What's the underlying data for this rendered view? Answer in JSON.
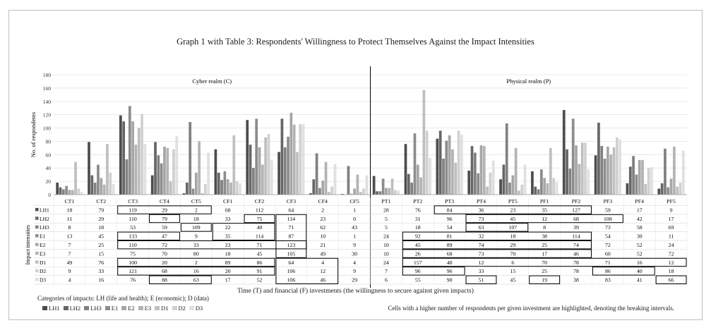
{
  "chart_data": {
    "type": "bar",
    "title": "Graph 1 with Table 3: Respondents' Willingness to Protect Themselves Against the Impact Intensities",
    "ylabel": "No. of respondents",
    "xlabel": "Time (T) and financial (F) investments (the willingness to secure against given impacts)",
    "table_axis_label": "Impact intensities",
    "ylim": [
      0,
      180
    ],
    "yticks": [
      0,
      20,
      40,
      60,
      80,
      100,
      120,
      140,
      160,
      180
    ],
    "regions": [
      "Cyber realm (C)",
      "Physical realm (P)"
    ],
    "categories": [
      "CT1",
      "CT2",
      "CT3",
      "CT4",
      "CT5",
      "CF1",
      "CF2",
      "CF3",
      "CF4",
      "CF5",
      "PT1",
      "PT2",
      "PT3",
      "PT4",
      "PT5",
      "PF1",
      "PF2",
      "PF3",
      "PF4",
      "PF5"
    ],
    "series": [
      {
        "name": "LH1",
        "color": "#4d4d4d",
        "values": [
          18,
          79,
          119,
          29,
          2,
          68,
          112,
          64,
          2,
          1,
          28,
          76,
          84,
          36,
          23,
          35,
          127,
          59,
          17,
          9
        ]
      },
      {
        "name": "LH2",
        "color": "#666666",
        "values": [
          11,
          29,
          110,
          79,
          18,
          33,
          75,
          114,
          23,
          0,
          5,
          31,
          96,
          73,
          45,
          12,
          68,
          108,
          42,
          17
        ]
      },
      {
        "name": "LH3",
        "color": "#808080",
        "values": [
          8,
          18,
          53,
          59,
          109,
          22,
          40,
          71,
          62,
          43,
          5,
          18,
          54,
          63,
          107,
          8,
          39,
          73,
          58,
          69
        ]
      },
      {
        "name": "E1",
        "color": "#8c8c8c",
        "values": [
          13,
          45,
          133,
          47,
          9,
          35,
          114,
          87,
          10,
          1,
          24,
          92,
          81,
          32,
          18,
          38,
          114,
          54,
          30,
          11
        ]
      },
      {
        "name": "E2",
        "color": "#a6a6a6",
        "values": [
          7,
          25,
          110,
          72,
          33,
          23,
          71,
          123,
          21,
          9,
          10,
          45,
          89,
          74,
          29,
          25,
          74,
          72,
          52,
          24
        ]
      },
      {
        "name": "E3",
        "color": "#b3b3b3",
        "values": [
          7,
          15,
          75,
          70,
          80,
          18,
          45,
          105,
          49,
          30,
          10,
          26,
          68,
          73,
          70,
          17,
          46,
          60,
          52,
          72
        ]
      },
      {
        "name": "D1",
        "color": "#bfbfbf",
        "values": [
          49,
          76,
          100,
          20,
          2,
          89,
          86,
          64,
          4,
          4,
          24,
          157,
          48,
          12,
          6,
          70,
          78,
          71,
          16,
          12
        ]
      },
      {
        "name": "D2",
        "color": "#d0d0d0",
        "values": [
          9,
          33,
          121,
          68,
          16,
          20,
          91,
          106,
          12,
          9,
          7,
          96,
          96,
          33,
          15,
          25,
          78,
          86,
          40,
          18
        ]
      },
      {
        "name": "D3",
        "color": "#e0e0e0",
        "values": [
          4,
          16,
          76,
          88,
          63,
          17,
          52,
          106,
          46,
          29,
          6,
          55,
          90,
          51,
          45,
          19,
          38,
          83,
          41,
          66
        ]
      }
    ],
    "highlighted_cells": [
      [
        2,
        1
      ],
      [
        3,
        1
      ],
      [
        5,
        1
      ],
      [
        6,
        1
      ],
      [
        3,
        2
      ],
      [
        4,
        2
      ],
      [
        5,
        2
      ],
      [
        4,
        3
      ],
      [
        5,
        3
      ],
      [
        5,
        4
      ],
      [
        4,
        5
      ],
      [
        4,
        6
      ],
      [
        6,
        6
      ],
      [
        5,
        7
      ],
      [
        2,
        0
      ],
      [
        2,
        1
      ],
      [
        3,
        2
      ],
      [
        4,
        3
      ],
      [
        4,
        4
      ],
      [
        5,
        5
      ],
      [
        10,
        0
      ],
      [
        11,
        1
      ],
      [
        12,
        2
      ],
      [
        13,
        3
      ],
      [
        14,
        4
      ],
      [
        15,
        5
      ],
      [
        16,
        6
      ],
      [
        17,
        7
      ],
      [
        18,
        8
      ],
      [
        19,
        8
      ],
      [
        12,
        0
      ],
      [
        13,
        1
      ],
      [
        12,
        1
      ],
      [
        13,
        0
      ],
      [
        14,
        0
      ],
      [
        15,
        0
      ],
      [
        16,
        0
      ],
      [
        12,
        3
      ],
      [
        13,
        4
      ]
    ]
  },
  "footer": {
    "categories_note": "Categories of impacts: LH (life and health); E (economic); D (data)",
    "highlight_note": "Cells with a higher number of respondents per given investment are highlighted, denoting the breaking intervals."
  }
}
